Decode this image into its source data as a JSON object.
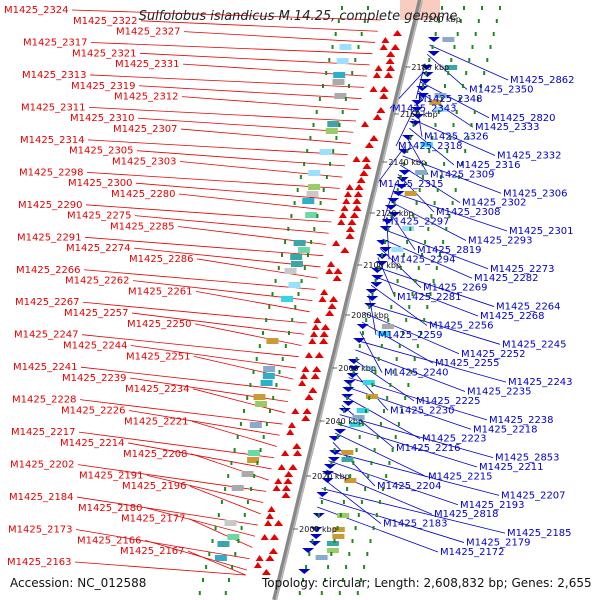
{
  "title": "Sulfolobus islandicus M.14.25, complete genome",
  "accession": "Accession: NC_012588",
  "summary": "Topology: circular; Length: 2,608,832 bp; Genes: 2,655",
  "colors": {
    "forward": "#e60000",
    "reverse": "#0000cc",
    "backbone": "#888888",
    "ticks": "#1e8a1e",
    "cyan": "#33d6e6",
    "teal": "#3aa6a6"
  },
  "tick_labels": [
    "2200 kbp",
    "2180 kbp",
    "2160 kbp",
    "2140 kbp",
    "2120 kbp",
    "2100 kbp",
    "2080 kbp",
    "2060 kbp",
    "2040 kbp",
    "2020 kbp",
    "2000 kbp"
  ],
  "left_labels": [
    "M1425_2324",
    "M1425_2322",
    "M1425_2327",
    "M1425_2317",
    "M1425_2321",
    "M1425_2331",
    "M1425_2313",
    "M1425_2319",
    "M1425_2312",
    "M1425_2311",
    "M1425_2310",
    "M1425_2307",
    "M1425_2314",
    "M1425_2305",
    "M1425_2303",
    "M1425_2298",
    "M1425_2300",
    "M1425_2280",
    "M1425_2290",
    "M1425_2275",
    "M1425_2285",
    "M1425_2291",
    "M1425_2274",
    "M1425_2286",
    "M1425_2266",
    "M1425_2262",
    "M1425_2261",
    "M1425_2267",
    "M1425_2257",
    "M1425_2250",
    "M1425_2247",
    "M1425_2244",
    "M1425_2251",
    "M1425_2241",
    "M1425_2239",
    "M1425_2234",
    "M1425_2228",
    "M1425_2226",
    "M1425_2221",
    "M1425_2217",
    "M1425_2214",
    "M1425_2208",
    "M1425_2202",
    "M1425_2191",
    "M1425_2196",
    "M1425_2184",
    "M1425_2180",
    "M1425_2177",
    "M1425_2173",
    "M1425_2166",
    "M1425_2167",
    "M1425_2163"
  ],
  "right_labels": [
    "M1425_2862",
    "M1425_2350",
    "M1425_2348",
    "M1425_2343",
    "M1425_2820",
    "M1425_2333",
    "M1425_2326",
    "M1425_2318",
    "M1425_2332",
    "M1425_2316",
    "M1425_2309",
    "M1425_2315",
    "M1425_2306",
    "M1425_2302",
    "M1425_2308",
    "M1425_2297",
    "M1425_2301",
    "M1425_2293",
    "M1425_2819",
    "M1425_2294",
    "M1425_2273",
    "M1425_2282",
    "M1425_2269",
    "M1425_2281",
    "M1425_2264",
    "M1425_2268",
    "M1425_2256",
    "M1425_2259",
    "M1425_2245",
    "M1425_2252",
    "M1425_2255",
    "M1425_2240",
    "M1425_2243",
    "M1425_2235",
    "M1425_2225",
    "M1425_2230",
    "M1425_2238",
    "M1425_2218",
    "M1425_2223",
    "M1425_2216",
    "M1425_2853",
    "M1425_2211",
    "M1425_2215",
    "M1425_2204",
    "M1425_2207",
    "M1425_2193",
    "M1425_2818",
    "M1425_2183",
    "M1425_2185",
    "M1425_2179",
    "M1425_2172"
  ]
}
